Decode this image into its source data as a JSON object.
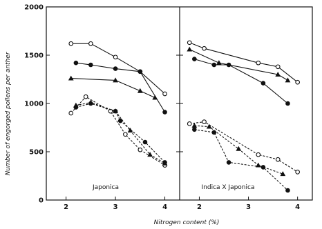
{
  "chart_data": {
    "type": "scatter",
    "xlabel": "Nitrogen content (%)",
    "ylabel": "Number of engorged pollens per anther",
    "ylim": [
      0,
      2000
    ],
    "yticks": [
      "0",
      "500",
      "1000",
      "1500",
      "2000"
    ],
    "grid": false,
    "panels": [
      {
        "label": "Japonica",
        "xlim": [
          1.6,
          4.3
        ],
        "xticks": [
          "2",
          "3",
          "4"
        ],
        "series": [
          {
            "marker": "open-circle",
            "line": "solid",
            "x": [
              2.1,
              2.5,
              3.0,
              3.5,
              4.0
            ],
            "y": [
              1620,
              1620,
              1480,
              1330,
              1100
            ]
          },
          {
            "marker": "filled-circle",
            "line": "solid",
            "x": [
              2.2,
              2.5,
              3.0,
              3.5,
              4.0
            ],
            "y": [
              1420,
              1400,
              1360,
              1330,
              910
            ]
          },
          {
            "marker": "filled-triangle",
            "line": "solid",
            "x": [
              2.1,
              3.0,
              3.5,
              3.8
            ],
            "y": [
              1260,
              1240,
              1130,
              1060
            ]
          },
          {
            "marker": "open-circle",
            "line": "dashed",
            "x": [
              2.1,
              2.4,
              2.9,
              3.2,
              3.5,
              4.0
            ],
            "y": [
              900,
              1070,
              920,
              680,
              520,
              360
            ]
          },
          {
            "marker": "filled-circle",
            "line": "dashed",
            "x": [
              2.2,
              2.5,
              3.0,
              3.1,
              3.6,
              4.0
            ],
            "y": [
              960,
              1000,
              920,
              820,
              600,
              390
            ]
          },
          {
            "marker": "filled-triangle",
            "line": "dashed",
            "x": [
              2.2,
              2.5,
              3.0,
              3.3,
              3.7,
              4.0
            ],
            "y": [
              980,
              1010,
              920,
              720,
              470,
              380
            ]
          }
        ]
      },
      {
        "label": "Indica X Japonica",
        "xlim": [
          1.6,
          4.3
        ],
        "xticks": [
          "2",
          "3",
          "4"
        ],
        "series": [
          {
            "marker": "open-circle",
            "line": "solid",
            "x": [
              1.8,
              2.1,
              3.2,
              3.6,
              4.0
            ],
            "y": [
              1630,
              1570,
              1420,
              1380,
              1220
            ]
          },
          {
            "marker": "filled-triangle",
            "line": "solid",
            "x": [
              1.8,
              2.4,
              3.6,
              3.8
            ],
            "y": [
              1560,
              1420,
              1300,
              1240
            ]
          },
          {
            "marker": "filled-circle",
            "line": "solid",
            "x": [
              1.9,
              2.3,
              2.6,
              3.3,
              3.8
            ],
            "y": [
              1460,
              1400,
              1400,
              1210,
              1000
            ]
          },
          {
            "marker": "open-circle",
            "line": "dashed",
            "x": [
              1.8,
              2.1,
              3.2,
              3.6,
              4.0
            ],
            "y": [
              790,
              810,
              470,
              420,
              290
            ]
          },
          {
            "marker": "filled-triangle",
            "line": "dashed",
            "x": [
              1.9,
              2.2,
              2.8,
              3.2,
              3.7
            ],
            "y": [
              770,
              760,
              530,
              360,
              270
            ]
          },
          {
            "marker": "filled-circle",
            "line": "dashed",
            "x": [
              1.9,
              2.3,
              2.6,
              3.3,
              3.8
            ],
            "y": [
              730,
              700,
              390,
              340,
              100
            ]
          }
        ]
      }
    ]
  }
}
